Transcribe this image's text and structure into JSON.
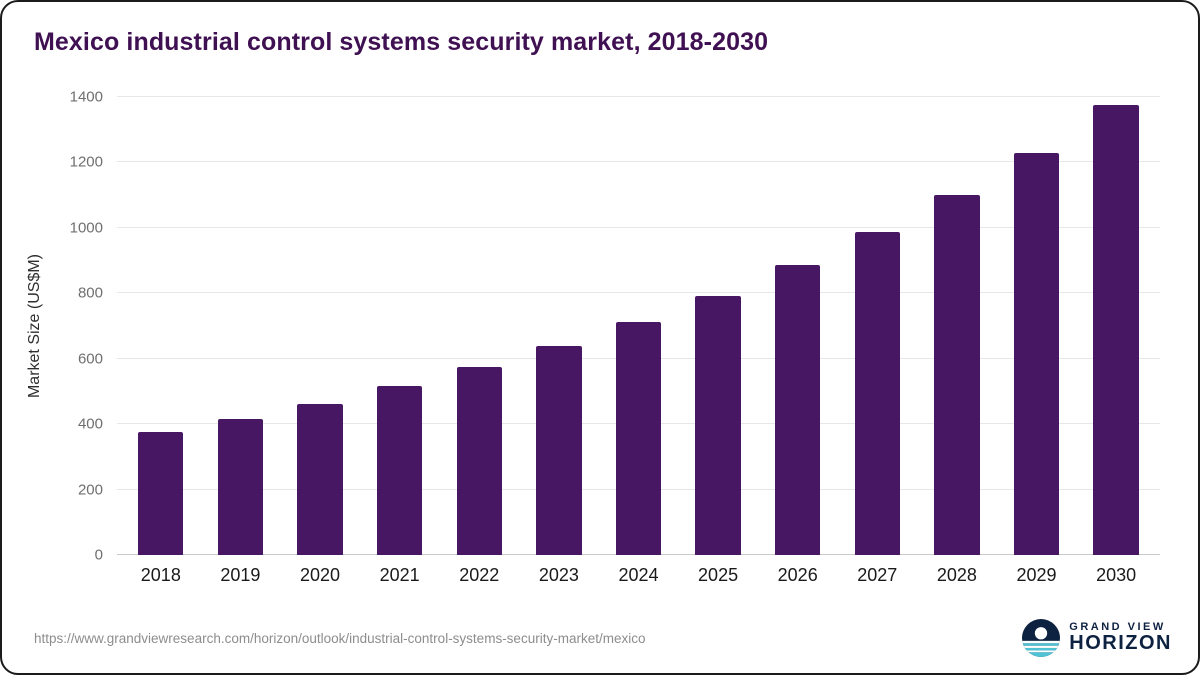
{
  "chart_data": {
    "type": "bar",
    "title": "Mexico industrial control systems security market, 2018-2030",
    "categories": [
      "2018",
      "2019",
      "2020",
      "2021",
      "2022",
      "2023",
      "2024",
      "2025",
      "2026",
      "2027",
      "2028",
      "2029",
      "2030"
    ],
    "values": [
      375,
      417,
      463,
      516,
      575,
      640,
      713,
      793,
      886,
      988,
      1100,
      1228,
      1375
    ],
    "xlabel": "",
    "ylabel": "Market Size (US$M)",
    "ylim": [
      0,
      1400
    ],
    "yticks": [
      0,
      200,
      400,
      600,
      800,
      1000,
      1200,
      1400
    ],
    "grid": true,
    "legend": false,
    "bar_color": "#471763"
  },
  "colors": {
    "bar": "#471763",
    "title": "#3f1052",
    "gridline": "#e7e7e7",
    "tick_label": "#6f6f6f",
    "logo_navy": "#0d2240",
    "logo_teal": "#4fc3d4"
  },
  "footer": {
    "source_url": "https://www.grandviewresearch.com/horizon/outlook/industrial-control-systems-security-market/mexico",
    "logo": {
      "line1": "GRAND VIEW",
      "line2": "HORIZON"
    }
  }
}
